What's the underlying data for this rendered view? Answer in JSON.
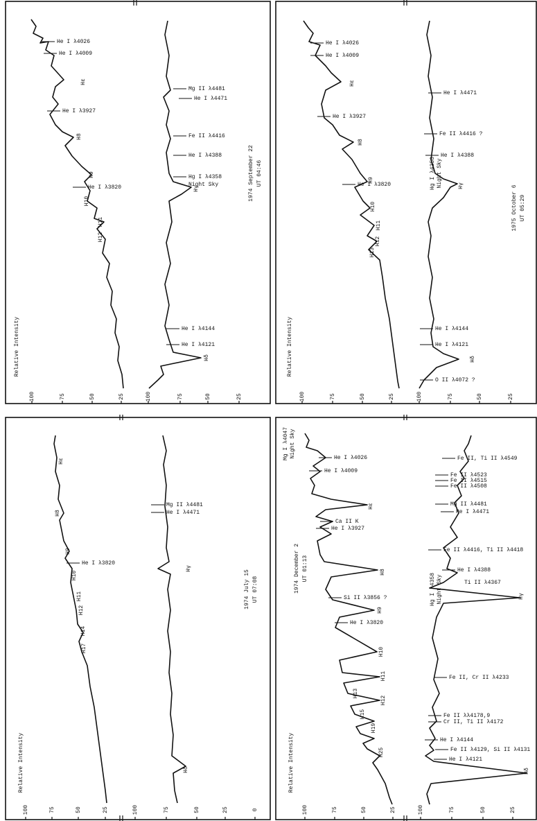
{
  "panels": [
    {
      "axis_label": "Relative Intensity",
      "date": "1974 September 22",
      "time": "UT 04:46",
      "ticks": [
        [
          100,
          75,
          50,
          25
        ],
        [
          100,
          75,
          50,
          25
        ]
      ],
      "labels": [
        "He I λ4026",
        "He I λ4009",
        "Hε",
        "He I λ3927",
        "H8",
        "H9",
        "He I λ3820",
        "H10",
        "H11",
        "H12",
        "Mg II λ4481",
        "He I λ4471",
        "Fe II λ4416",
        "He I λ4388",
        "Hg I λ4358",
        "Night Sky",
        "Hγ",
        "He I λ4144",
        "He I λ4121",
        "Hδ"
      ]
    },
    {
      "axis_label": "Relative Intensity",
      "date": "1975 October 6",
      "time": "UT 05:29",
      "ticks": [
        [
          100,
          75,
          50,
          25
        ],
        [
          100,
          75,
          50,
          25
        ]
      ],
      "labels": [
        "He I λ4026",
        "He I λ4009",
        "Hε",
        "He I λ3927",
        "H8",
        "H9",
        "He I λ3820",
        "H10",
        "H11",
        "H12",
        "H13",
        "He I λ4471",
        "Fe II λ4416 ?",
        "He I λ4388",
        "Hg I λ4358",
        "Night Sky",
        "Hγ",
        "He I λ4144",
        "He I λ4121",
        "Hδ",
        "O II λ4072 ?"
      ]
    },
    {
      "axis_label": "Relative Intensity",
      "date": "1974 July 15",
      "time": "UT 07:08",
      "ticks": [
        [
          100,
          75,
          50,
          25
        ],
        [
          100,
          75,
          50,
          25,
          0
        ]
      ],
      "labels": [
        "Hε",
        "H8",
        "H9",
        "He I λ3820",
        "H10",
        "H11",
        "H12",
        "H14",
        "H17",
        "Mg II λ4481",
        "He I λ4471",
        "Hγ",
        "Hδ"
      ]
    },
    {
      "axis_label": "Relative Intensity",
      "date": "1974 December 2",
      "time": "UT 01:13",
      "ticks": [
        [
          100,
          75,
          50,
          25
        ],
        [
          100,
          75,
          50,
          25
        ]
      ],
      "labels": [
        "Mg I λ4047",
        "Night Sky",
        "He I λ4026",
        "He I λ4009",
        "Hε",
        "Ca II K",
        "He I λ3927",
        "H8",
        "Si II λ3856 ?",
        "H9",
        "He I λ3820",
        "H10",
        "H11",
        "H12",
        "H13",
        "H15",
        "H19",
        "H25",
        "Fe II, Ti II λ4549",
        "Fe II λ4523",
        "Fe II λ4515",
        "Fe II λ4508",
        "Mg II λ4481",
        "He I λ4471",
        "Fe II λ4416, Ti II λ4418",
        "He I λ4388",
        "Ti II λ4367",
        "Hg I λ4358",
        "Night Sky",
        "Hγ",
        "Fe II, Cr II λ4233",
        "Fe II λλ4178,9",
        "Cr II, Ti II λ4172",
        "He I λ4144",
        "Fe II λ4129, Si II λ4131",
        "He I λ4121",
        "Hδ"
      ]
    }
  ]
}
